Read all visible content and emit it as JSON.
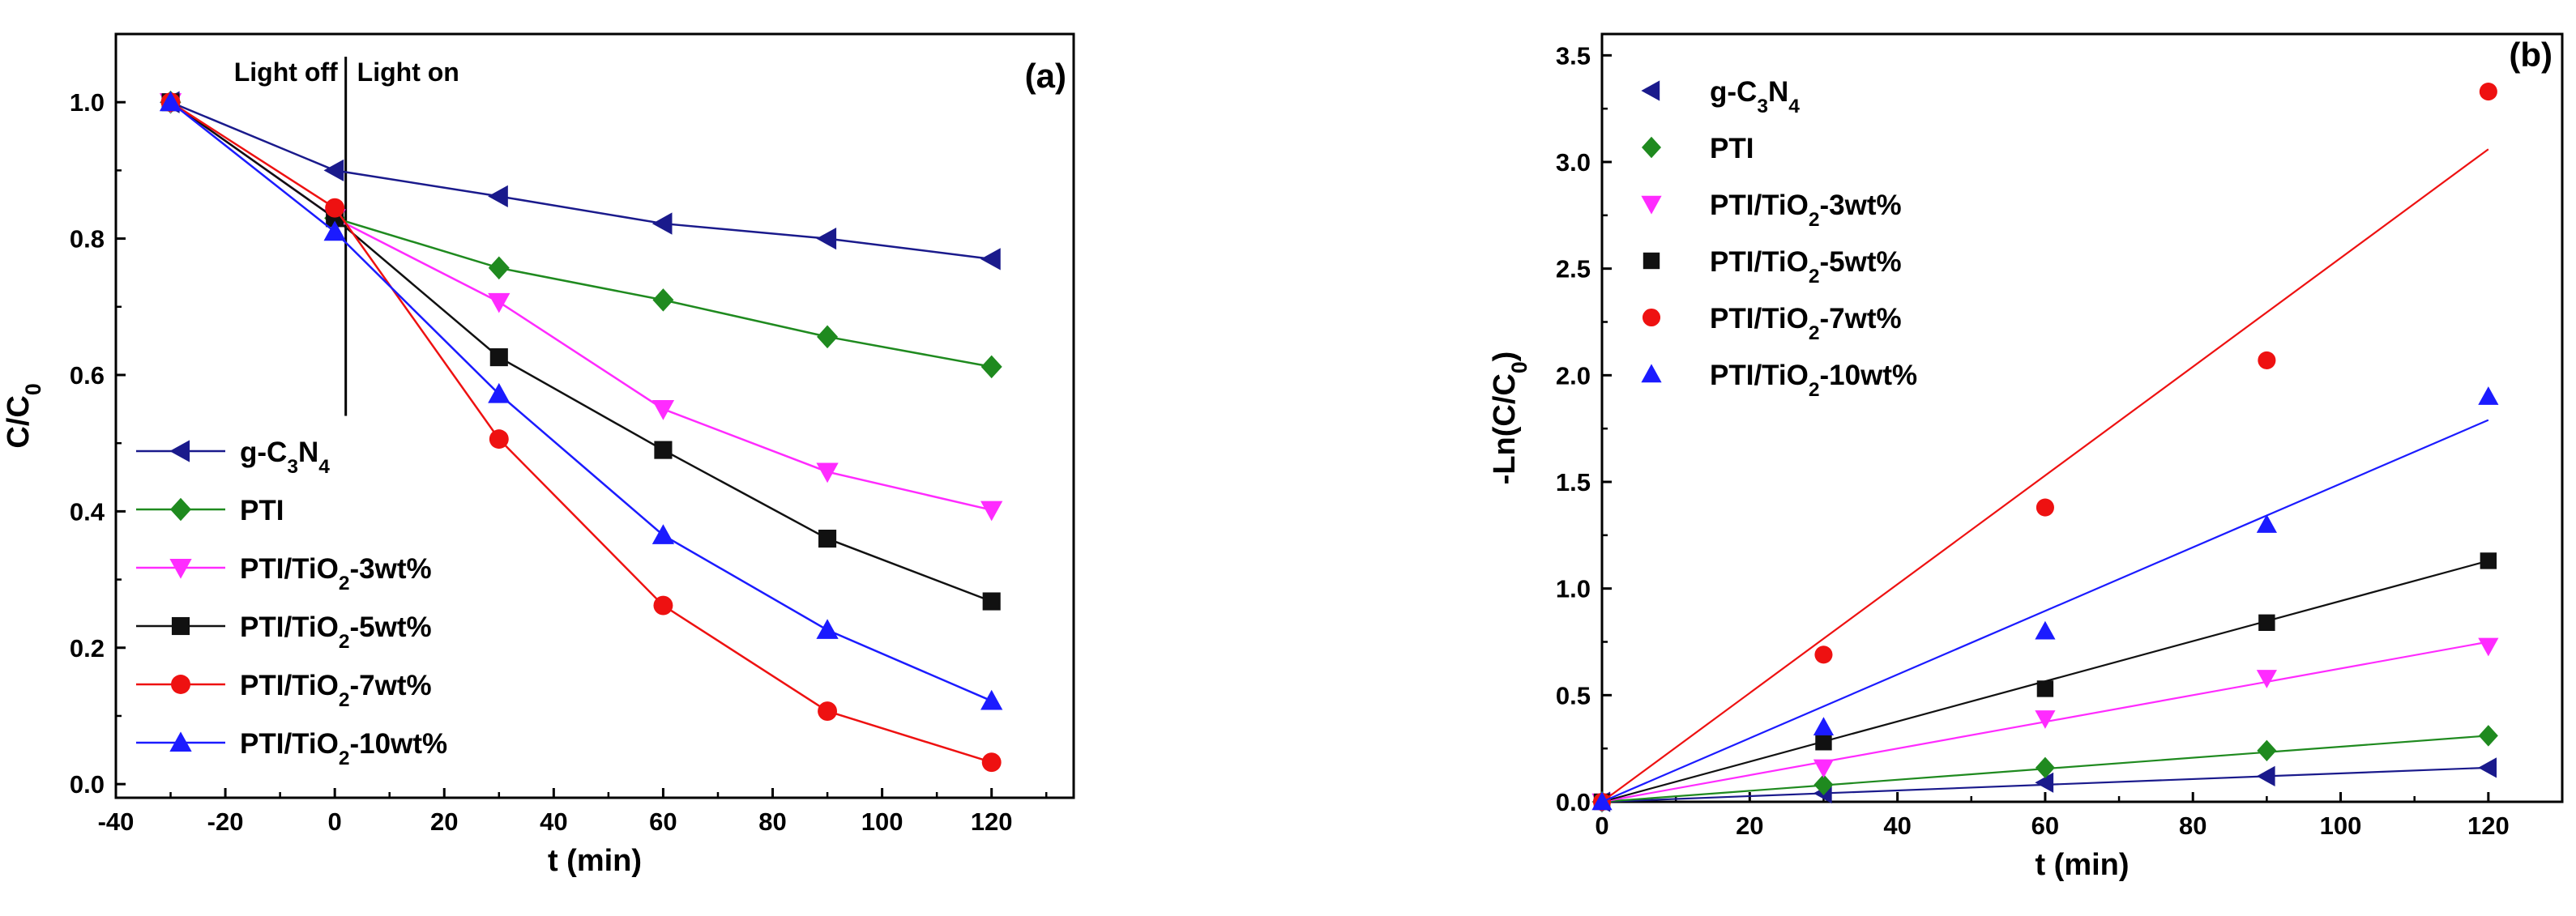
{
  "chart_data": [
    {
      "type": "line",
      "panel": "(a)",
      "title": "",
      "xlabel": "t (min)",
      "ylabel": "C/C0",
      "xlim": [
        -40,
        135
      ],
      "ylim": [
        -0.02,
        1.1
      ],
      "xticks": [
        -40,
        -20,
        0,
        20,
        40,
        60,
        80,
        100,
        120
      ],
      "yticks": [
        0.0,
        0.2,
        0.4,
        0.6,
        0.8,
        1.0
      ],
      "legend_position": "bottom-left",
      "annotations": [
        "Light off",
        "Light on"
      ],
      "divider_x": 2,
      "x": [
        -30,
        0,
        30,
        60,
        90,
        120
      ],
      "series": [
        {
          "name": "g-C3N4",
          "color": "#1a1a8c",
          "marker": "triangle-left",
          "values": [
            1.0,
            0.9,
            0.862,
            0.822,
            0.8,
            0.77
          ]
        },
        {
          "name": "PTI",
          "color": "#1f8a1f",
          "marker": "diamond",
          "values": [
            1.0,
            0.83,
            0.757,
            0.71,
            0.656,
            0.612
          ]
        },
        {
          "name": "PTI/TiO2-3wt%",
          "color": "#ff2bff",
          "marker": "triangle-down",
          "values": [
            1.0,
            0.83,
            0.707,
            0.55,
            0.458,
            0.402
          ]
        },
        {
          "name": "PTI/TiO2-5wt%",
          "color": "#111111",
          "marker": "square",
          "values": [
            1.0,
            0.83,
            0.626,
            0.49,
            0.36,
            0.268
          ]
        },
        {
          "name": "PTI/TiO2-7wt%",
          "color": "#ee1111",
          "marker": "circle",
          "values": [
            1.0,
            0.845,
            0.506,
            0.262,
            0.107,
            0.032
          ]
        },
        {
          "name": "PTI/TiO2-10wt%",
          "color": "#1b1bff",
          "marker": "triangle-up",
          "values": [
            1.0,
            0.81,
            0.572,
            0.365,
            0.226,
            0.122
          ]
        }
      ]
    },
    {
      "type": "scatter",
      "panel": "(b)",
      "title": "",
      "xlabel": "t (min)",
      "ylabel": "-Ln(C/C0)",
      "xlim": [
        0,
        130
      ],
      "ylim": [
        0,
        3.6
      ],
      "xticks": [
        0,
        20,
        40,
        60,
        80,
        100,
        120
      ],
      "yticks": [
        0.0,
        0.5,
        1.0,
        1.5,
        2.0,
        2.5,
        3.0,
        3.5
      ],
      "legend_position": "top-left",
      "x": [
        0,
        30,
        60,
        90,
        120
      ],
      "series": [
        {
          "name": "g-C3N4",
          "color": "#1a1a8c",
          "marker": "triangle-left",
          "values": [
            0,
            0.04,
            0.09,
            0.12,
            0.16
          ],
          "fit_end": 0.16
        },
        {
          "name": "PTI",
          "color": "#1f8a1f",
          "marker": "diamond",
          "values": [
            0,
            0.08,
            0.16,
            0.24,
            0.31
          ],
          "fit_end": 0.31
        },
        {
          "name": "PTI/TiO2-3wt%",
          "color": "#ff2bff",
          "marker": "triangle-down",
          "values": [
            0,
            0.16,
            0.39,
            0.58,
            0.73
          ],
          "fit_end": 0.75
        },
        {
          "name": "PTI/TiO2-5wt%",
          "color": "#111111",
          "marker": "square",
          "values": [
            0,
            0.28,
            0.53,
            0.84,
            1.13
          ],
          "fit_end": 1.13
        },
        {
          "name": "PTI/TiO2-7wt%",
          "color": "#ee1111",
          "marker": "circle",
          "values": [
            0,
            0.69,
            1.38,
            2.07,
            3.33
          ],
          "fit_end": 3.06
        },
        {
          "name": "PTI/TiO2-10wt%",
          "color": "#1b1bff",
          "marker": "triangle-up",
          "values": [
            0,
            0.35,
            0.8,
            1.3,
            1.9
          ],
          "fit_end": 1.79
        }
      ]
    }
  ]
}
